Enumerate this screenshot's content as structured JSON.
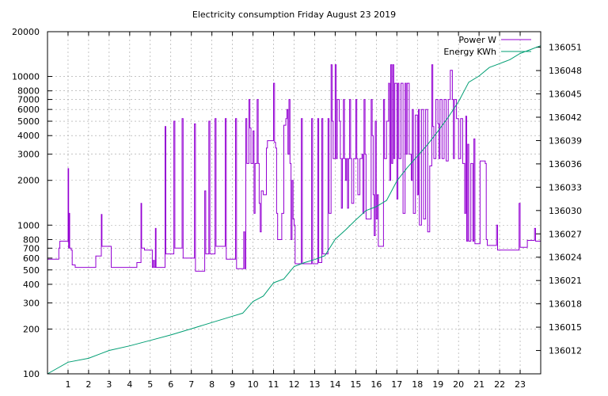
{
  "chart_data": {
    "type": "line",
    "title": "Electricity consumption Friday August 23 2019",
    "grid": true,
    "legend_placement": "top-right",
    "x": {
      "label": "",
      "range": [
        0,
        24
      ],
      "ticks": [
        1,
        2,
        3,
        4,
        5,
        6,
        7,
        8,
        9,
        10,
        11,
        12,
        13,
        14,
        15,
        16,
        17,
        18,
        19,
        20,
        21,
        22,
        23
      ]
    },
    "y_left": {
      "label": "",
      "scale": "log",
      "range": [
        100,
        20000
      ],
      "ticks": [
        100,
        200,
        300,
        400,
        500,
        600,
        700,
        800,
        1000,
        2000,
        3000,
        4000,
        5000,
        6000,
        7000,
        8000,
        10000,
        20000
      ]
    },
    "y_right": {
      "label": "",
      "scale": "linear",
      "range": [
        136009,
        136053
      ],
      "ticks": [
        136012,
        136015,
        136018,
        136021,
        136024,
        136027,
        136030,
        136033,
        136036,
        136039,
        136042,
        136045,
        136048,
        136051
      ]
    },
    "series": [
      {
        "name": "Power W",
        "axis": "left",
        "color": "#9400d3",
        "points": [
          [
            0,
            590
          ],
          [
            0.5,
            590
          ],
          [
            0.55,
            700
          ],
          [
            0.6,
            780
          ],
          [
            0.95,
            780
          ],
          [
            1.0,
            2400
          ],
          [
            1.03,
            700
          ],
          [
            1.05,
            1200
          ],
          [
            1.08,
            700
          ],
          [
            1.15,
            680
          ],
          [
            1.2,
            540
          ],
          [
            1.35,
            520
          ],
          [
            2.3,
            520
          ],
          [
            2.35,
            620
          ],
          [
            2.6,
            620
          ],
          [
            2.62,
            1180
          ],
          [
            2.65,
            720
          ],
          [
            3.0,
            720
          ],
          [
            3.1,
            520
          ],
          [
            4.3,
            520
          ],
          [
            4.35,
            560
          ],
          [
            4.5,
            560
          ],
          [
            4.55,
            1400
          ],
          [
            4.58,
            700
          ],
          [
            4.7,
            700
          ],
          [
            4.72,
            680
          ],
          [
            5.05,
            680
          ],
          [
            5.1,
            520
          ],
          [
            5.15,
            580
          ],
          [
            5.2,
            520
          ],
          [
            5.25,
            950
          ],
          [
            5.28,
            520
          ],
          [
            5.7,
            520
          ],
          [
            5.72,
            4600
          ],
          [
            5.76,
            640
          ],
          [
            6.1,
            640
          ],
          [
            6.15,
            5000
          ],
          [
            6.2,
            700
          ],
          [
            6.5,
            700
          ],
          [
            6.55,
            5200
          ],
          [
            6.6,
            600
          ],
          [
            7.1,
            600
          ],
          [
            7.15,
            4800
          ],
          [
            7.2,
            490
          ],
          [
            7.6,
            490
          ],
          [
            7.65,
            1700
          ],
          [
            7.7,
            640
          ],
          [
            7.8,
            640
          ],
          [
            7.85,
            5000
          ],
          [
            7.9,
            640
          ],
          [
            8.1,
            640
          ],
          [
            8.15,
            5200
          ],
          [
            8.2,
            720
          ],
          [
            8.6,
            720
          ],
          [
            8.65,
            5200
          ],
          [
            8.7,
            590
          ],
          [
            9.1,
            590
          ],
          [
            9.15,
            5200
          ],
          [
            9.2,
            510
          ],
          [
            9.5,
            510
          ],
          [
            9.55,
            900
          ],
          [
            9.6,
            510
          ],
          [
            9.65,
            5200
          ],
          [
            9.7,
            2600
          ],
          [
            9.8,
            7000
          ],
          [
            9.85,
            4500
          ],
          [
            9.9,
            2600
          ],
          [
            10.0,
            4300
          ],
          [
            10.05,
            1200
          ],
          [
            10.1,
            2600
          ],
          [
            10.2,
            7000
          ],
          [
            10.25,
            2600
          ],
          [
            10.3,
            1400
          ],
          [
            10.35,
            900
          ],
          [
            10.4,
            1700
          ],
          [
            10.5,
            1600
          ],
          [
            10.6,
            1600
          ],
          [
            10.65,
            3300
          ],
          [
            10.7,
            3700
          ],
          [
            10.95,
            3700
          ],
          [
            11.0,
            9000
          ],
          [
            11.05,
            3600
          ],
          [
            11.1,
            3300
          ],
          [
            11.15,
            1200
          ],
          [
            11.2,
            800
          ],
          [
            11.3,
            800
          ],
          [
            11.4,
            1200
          ],
          [
            11.5,
            4700
          ],
          [
            11.6,
            5200
          ],
          [
            11.65,
            6000
          ],
          [
            11.7,
            3000
          ],
          [
            11.75,
            7000
          ],
          [
            11.8,
            2600
          ],
          [
            11.85,
            800
          ],
          [
            11.9,
            2000
          ],
          [
            11.95,
            1100
          ],
          [
            12.0,
            1000
          ],
          [
            12.05,
            550
          ],
          [
            12.3,
            550
          ],
          [
            12.35,
            5200
          ],
          [
            12.4,
            550
          ],
          [
            12.8,
            550
          ],
          [
            12.85,
            5200
          ],
          [
            12.9,
            550
          ],
          [
            13.1,
            550
          ],
          [
            13.15,
            5200
          ],
          [
            13.2,
            560
          ],
          [
            13.3,
            560
          ],
          [
            13.35,
            5200
          ],
          [
            13.4,
            640
          ],
          [
            13.6,
            640
          ],
          [
            13.65,
            5200
          ],
          [
            13.7,
            1200
          ],
          [
            13.8,
            12000
          ],
          [
            13.85,
            5000
          ],
          [
            13.9,
            2800
          ],
          [
            14.0,
            12000
          ],
          [
            14.05,
            2800
          ],
          [
            14.1,
            7000
          ],
          [
            14.2,
            5000
          ],
          [
            14.25,
            2800
          ],
          [
            14.3,
            1300
          ],
          [
            14.35,
            2800
          ],
          [
            14.4,
            7000
          ],
          [
            14.45,
            2800
          ],
          [
            14.5,
            2000
          ],
          [
            14.55,
            2800
          ],
          [
            14.6,
            1300
          ],
          [
            14.65,
            2800
          ],
          [
            14.7,
            7000
          ],
          [
            14.75,
            2800
          ],
          [
            14.8,
            1400
          ],
          [
            14.9,
            2800
          ],
          [
            15.0,
            7000
          ],
          [
            15.05,
            2800
          ],
          [
            15.1,
            1600
          ],
          [
            15.2,
            2800
          ],
          [
            15.3,
            3000
          ],
          [
            15.35,
            1200
          ],
          [
            15.4,
            7000
          ],
          [
            15.45,
            3000
          ],
          [
            15.5,
            1100
          ],
          [
            15.7,
            1100
          ],
          [
            15.75,
            7000
          ],
          [
            15.8,
            4000
          ],
          [
            15.85,
            1600
          ],
          [
            15.9,
            850
          ],
          [
            15.95,
            5000
          ],
          [
            16.0,
            1100
          ],
          [
            16.05,
            1600
          ],
          [
            16.1,
            720
          ],
          [
            16.3,
            720
          ],
          [
            16.35,
            7000
          ],
          [
            16.4,
            2800
          ],
          [
            16.5,
            5000
          ],
          [
            16.6,
            9000
          ],
          [
            16.65,
            2000
          ],
          [
            16.7,
            12000
          ],
          [
            16.75,
            2600
          ],
          [
            16.8,
            12000
          ],
          [
            16.85,
            2800
          ],
          [
            16.9,
            9000
          ],
          [
            17.0,
            1500
          ],
          [
            17.05,
            9000
          ],
          [
            17.1,
            2800
          ],
          [
            17.2,
            9000
          ],
          [
            17.3,
            1200
          ],
          [
            17.4,
            9000
          ],
          [
            17.45,
            3000
          ],
          [
            17.5,
            9000
          ],
          [
            17.6,
            3000
          ],
          [
            17.7,
            2000
          ],
          [
            17.75,
            6000
          ],
          [
            17.8,
            1200
          ],
          [
            17.9,
            5500
          ],
          [
            18.0,
            1600
          ],
          [
            18.05,
            6000
          ],
          [
            18.1,
            1000
          ],
          [
            18.2,
            6000
          ],
          [
            18.3,
            1100
          ],
          [
            18.4,
            6000
          ],
          [
            18.5,
            900
          ],
          [
            18.6,
            2500
          ],
          [
            18.7,
            12000
          ],
          [
            18.75,
            4600
          ],
          [
            18.8,
            2800
          ],
          [
            18.9,
            7000
          ],
          [
            19.0,
            4800
          ],
          [
            19.05,
            2800
          ],
          [
            19.1,
            7000
          ],
          [
            19.2,
            2800
          ],
          [
            19.3,
            7000
          ],
          [
            19.4,
            2700
          ],
          [
            19.5,
            7000
          ],
          [
            19.6,
            11000
          ],
          [
            19.7,
            7000
          ],
          [
            19.75,
            2800
          ],
          [
            19.8,
            7000
          ],
          [
            19.9,
            5200
          ],
          [
            20.0,
            2800
          ],
          [
            20.1,
            5200
          ],
          [
            20.2,
            2600
          ],
          [
            20.3,
            1200
          ],
          [
            20.35,
            5400
          ],
          [
            20.4,
            780
          ],
          [
            20.45,
            3500
          ],
          [
            20.5,
            780
          ],
          [
            20.6,
            2600
          ],
          [
            20.7,
            780
          ],
          [
            20.75,
            3800
          ],
          [
            20.8,
            750
          ],
          [
            21.0,
            750
          ],
          [
            21.05,
            2700
          ],
          [
            21.3,
            2600
          ],
          [
            21.35,
            800
          ],
          [
            21.4,
            730
          ],
          [
            21.8,
            730
          ],
          [
            21.85,
            1000
          ],
          [
            21.9,
            680
          ],
          [
            22.9,
            680
          ],
          [
            22.95,
            1400
          ],
          [
            23.0,
            710
          ],
          [
            23.3,
            710
          ],
          [
            23.35,
            790
          ],
          [
            23.6,
            790
          ],
          [
            23.7,
            950
          ],
          [
            23.75,
            780
          ],
          [
            23.9,
            780
          ],
          [
            24.0,
            590
          ]
        ]
      },
      {
        "name": "Energy KWh",
        "axis": "right",
        "color": "#009e73",
        "points": [
          [
            0,
            136009.0
          ],
          [
            1,
            136010.5
          ],
          [
            2,
            136011.0
          ],
          [
            3,
            136012.0
          ],
          [
            4,
            136012.6
          ],
          [
            5,
            136013.3
          ],
          [
            6,
            136014.0
          ],
          [
            7,
            136014.8
          ],
          [
            8,
            136015.6
          ],
          [
            9,
            136016.4
          ],
          [
            9.5,
            136016.8
          ],
          [
            10,
            136018.3
          ],
          [
            10.5,
            136019.0
          ],
          [
            11,
            136020.7
          ],
          [
            11.5,
            136021.2
          ],
          [
            12,
            136022.8
          ],
          [
            12.5,
            136023.3
          ],
          [
            13,
            136023.7
          ],
          [
            13.5,
            136024.2
          ],
          [
            14,
            136026.3
          ],
          [
            14.5,
            136027.5
          ],
          [
            15,
            136028.8
          ],
          [
            15.5,
            136030.0
          ],
          [
            16,
            136030.5
          ],
          [
            16.5,
            136031.3
          ],
          [
            17,
            136033.8
          ],
          [
            17.5,
            136035.5
          ],
          [
            18,
            136037.0
          ],
          [
            18.5,
            136038.5
          ],
          [
            19,
            136040.2
          ],
          [
            19.5,
            136042.0
          ],
          [
            20,
            136044.0
          ],
          [
            20.5,
            136046.5
          ],
          [
            21,
            136047.3
          ],
          [
            21.5,
            136048.4
          ],
          [
            22,
            136048.9
          ],
          [
            22.5,
            136049.4
          ],
          [
            23,
            136050.2
          ],
          [
            23.5,
            136050.7
          ],
          [
            24,
            136051.2
          ]
        ]
      }
    ]
  }
}
